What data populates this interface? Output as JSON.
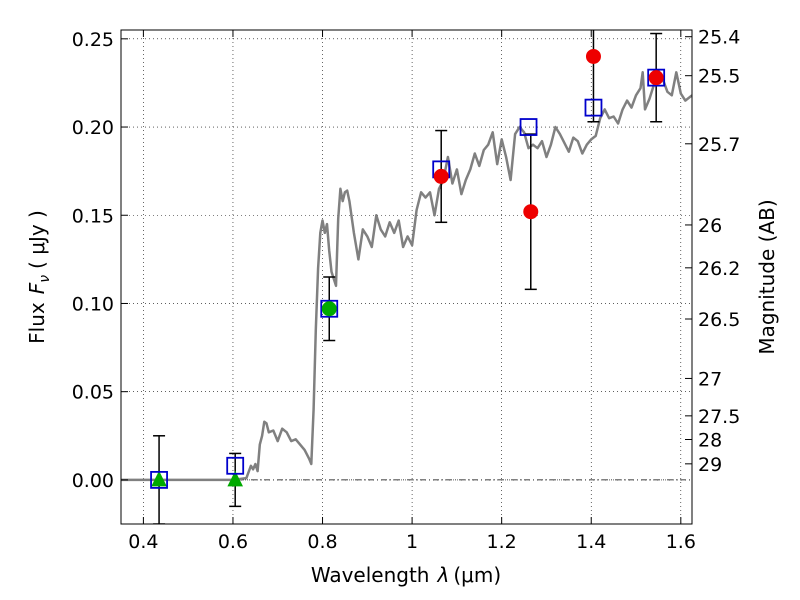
{
  "chart_data": {
    "type": "scatter",
    "xlabel_prefix": "Wavelength",
    "xlabel_symbol": "λ",
    "xlabel_unit": "(μm)",
    "ylabel_prefix": "Flux",
    "ylabel_symbol": "F",
    "ylabel_subscript": "ν",
    "ylabel_unit": "( μJy )",
    "y2label": "Magnitude (AB)",
    "xlim": [
      0.35,
      1.625
    ],
    "ylim": [
      -0.025,
      0.255
    ],
    "xticks": [
      0.4,
      0.6,
      0.8,
      1.0,
      1.2,
      1.4,
      1.6
    ],
    "xtick_labels": [
      "0.4",
      "0.6",
      "0.8",
      "1",
      "1.2",
      "1.4",
      "1.6"
    ],
    "yticks": [
      0.0,
      0.05,
      0.1,
      0.15,
      0.2,
      0.25
    ],
    "ytick_labels": [
      "0.00",
      "0.05",
      "0.10",
      "0.15",
      "0.20",
      "0.25"
    ],
    "y2ticks": [
      {
        "label": "25.4",
        "flux": 0.2512
      },
      {
        "label": "25.5",
        "flux": 0.2291
      },
      {
        "label": "25.7",
        "flux": 0.1905
      },
      {
        "label": "26",
        "flux": 0.1445
      },
      {
        "label": "26.2",
        "flux": 0.1202
      },
      {
        "label": "26.5",
        "flux": 0.0912
      },
      {
        "label": "27",
        "flux": 0.0575
      },
      {
        "label": "27.5",
        "flux": 0.0363
      },
      {
        "label": "28",
        "flux": 0.0229
      },
      {
        "label": "29",
        "flux": 0.0091
      }
    ],
    "grid": true,
    "model_spectrum": {
      "color": "#808080",
      "x": [
        0.35,
        0.6,
        0.63,
        0.64,
        0.645,
        0.65,
        0.655,
        0.66,
        0.665,
        0.67,
        0.675,
        0.68,
        0.69,
        0.7,
        0.71,
        0.72,
        0.73,
        0.74,
        0.75,
        0.76,
        0.77,
        0.775,
        0.78,
        0.785,
        0.79,
        0.795,
        0.8,
        0.805,
        0.81,
        0.815,
        0.82,
        0.83,
        0.835,
        0.84,
        0.845,
        0.85,
        0.855,
        0.86,
        0.87,
        0.88,
        0.89,
        0.9,
        0.91,
        0.92,
        0.93,
        0.94,
        0.95,
        0.96,
        0.97,
        0.98,
        0.99,
        1.0,
        1.01,
        1.02,
        1.03,
        1.04,
        1.05,
        1.06,
        1.07,
        1.08,
        1.09,
        1.1,
        1.11,
        1.12,
        1.13,
        1.14,
        1.15,
        1.16,
        1.17,
        1.18,
        1.19,
        1.2,
        1.21,
        1.22,
        1.23,
        1.24,
        1.25,
        1.26,
        1.27,
        1.28,
        1.29,
        1.3,
        1.31,
        1.32,
        1.33,
        1.34,
        1.35,
        1.36,
        1.37,
        1.38,
        1.39,
        1.4,
        1.41,
        1.42,
        1.43,
        1.44,
        1.45,
        1.46,
        1.47,
        1.48,
        1.49,
        1.5,
        1.51,
        1.515,
        1.52,
        1.53,
        1.54,
        1.55,
        1.56,
        1.57,
        1.58,
        1.59,
        1.6,
        1.61,
        1.625
      ],
      "y": [
        0.0,
        0.0,
        0.001,
        0.008,
        0.006,
        0.009,
        0.005,
        0.02,
        0.025,
        0.033,
        0.032,
        0.027,
        0.028,
        0.022,
        0.029,
        0.027,
        0.022,
        0.023,
        0.02,
        0.017,
        0.012,
        0.009,
        0.04,
        0.085,
        0.12,
        0.14,
        0.147,
        0.14,
        0.145,
        0.13,
        0.118,
        0.11,
        0.148,
        0.165,
        0.158,
        0.163,
        0.164,
        0.158,
        0.14,
        0.125,
        0.142,
        0.138,
        0.132,
        0.15,
        0.142,
        0.138,
        0.146,
        0.14,
        0.147,
        0.132,
        0.138,
        0.133,
        0.153,
        0.163,
        0.16,
        0.163,
        0.15,
        0.165,
        0.17,
        0.183,
        0.168,
        0.176,
        0.162,
        0.17,
        0.176,
        0.185,
        0.178,
        0.187,
        0.19,
        0.197,
        0.179,
        0.193,
        0.183,
        0.17,
        0.196,
        0.2,
        0.197,
        0.188,
        0.19,
        0.188,
        0.192,
        0.183,
        0.19,
        0.2,
        0.196,
        0.191,
        0.186,
        0.194,
        0.192,
        0.185,
        0.19,
        0.193,
        0.195,
        0.205,
        0.21,
        0.205,
        0.206,
        0.202,
        0.21,
        0.215,
        0.211,
        0.218,
        0.222,
        0.231,
        0.21,
        0.216,
        0.224,
        0.232,
        0.227,
        0.22,
        0.218,
        0.231,
        0.219,
        0.215,
        0.218
      ]
    },
    "upper_limits": {
      "color": "#00aa00",
      "points": [
        {
          "x": 0.435,
          "y": 0.0
        },
        {
          "x": 0.605,
          "y": 0.0
        }
      ]
    },
    "model_photometry": {
      "color": "#0000cc",
      "points": [
        {
          "x": 0.435,
          "y": 0.0
        },
        {
          "x": 0.605,
          "y": 0.008
        },
        {
          "x": 0.815,
          "y": 0.097
        },
        {
          "x": 1.065,
          "y": 0.176
        },
        {
          "x": 1.26,
          "y": 0.2
        },
        {
          "x": 1.405,
          "y": 0.211
        },
        {
          "x": 1.545,
          "y": 0.228
        }
      ]
    },
    "observed": {
      "points": [
        {
          "x": 0.435,
          "y": 0.0,
          "err": 0.025,
          "color": "#00aa00",
          "marker": "triangle"
        },
        {
          "x": 0.605,
          "y": 0.0,
          "err": 0.015,
          "color": "#00aa00",
          "marker": "triangle"
        },
        {
          "x": 0.815,
          "y": 0.097,
          "err": 0.018,
          "color": "#00aa00",
          "marker": "circle"
        },
        {
          "x": 1.065,
          "y": 0.172,
          "err": 0.026,
          "color": "#ee0000",
          "marker": "circle"
        },
        {
          "x": 1.265,
          "y": 0.152,
          "err": 0.044,
          "color": "#ee0000",
          "marker": "circle"
        },
        {
          "x": 1.405,
          "y": 0.24,
          "err": 0.037,
          "color": "#ee0000",
          "marker": "circle"
        },
        {
          "x": 1.545,
          "y": 0.228,
          "err": 0.025,
          "color": "#ee0000",
          "marker": "circle"
        }
      ]
    }
  }
}
